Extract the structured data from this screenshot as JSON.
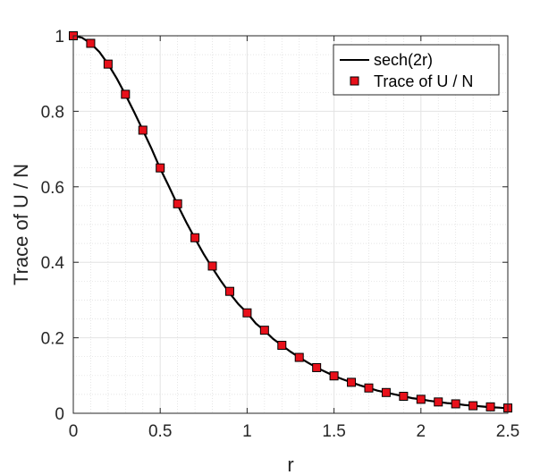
{
  "chart_data": {
    "type": "line",
    "xlabel": "r",
    "ylabel": "Trace of U / N",
    "xlim": [
      0,
      2.5
    ],
    "ylim": [
      0,
      1
    ],
    "x_ticks": [
      "0",
      "0.5",
      "1",
      "1.5",
      "2",
      "2.5"
    ],
    "y_ticks": [
      "0",
      "0.2",
      "0.4",
      "0.6",
      "0.8",
      "1"
    ],
    "grid": "on (major and minor)",
    "legend_placement": "top-right",
    "series": [
      {
        "name": "sech(2r)",
        "style": "line",
        "color": "#000000",
        "x": [
          0,
          0.05,
          0.1,
          0.15,
          0.2,
          0.25,
          0.3,
          0.35,
          0.4,
          0.45,
          0.5,
          0.55,
          0.6,
          0.65,
          0.7,
          0.75,
          0.8,
          0.85,
          0.9,
          0.95,
          1.0,
          1.05,
          1.1,
          1.15,
          1.2,
          1.25,
          1.3,
          1.35,
          1.4,
          1.45,
          1.5,
          1.55,
          1.6,
          1.65,
          1.7,
          1.75,
          1.8,
          1.85,
          1.9,
          1.95,
          2.0,
          2.05,
          2.1,
          2.15,
          2.2,
          2.25,
          2.3,
          2.35,
          2.4,
          2.45,
          2.5
        ],
        "y": [
          1.0,
          0.995,
          0.98,
          0.957,
          0.925,
          0.887,
          0.844,
          0.798,
          0.75,
          0.701,
          0.648,
          0.601,
          0.552,
          0.506,
          0.463,
          0.422,
          0.385,
          0.35,
          0.318,
          0.289,
          0.266,
          0.238,
          0.219,
          0.197,
          0.18,
          0.163,
          0.148,
          0.134,
          0.121,
          0.11,
          0.099,
          0.09,
          0.082,
          0.074,
          0.067,
          0.06,
          0.055,
          0.05,
          0.045,
          0.04,
          0.037,
          0.033,
          0.03,
          0.027,
          0.025,
          0.022,
          0.02,
          0.018,
          0.016,
          0.015,
          0.013
        ]
      },
      {
        "name": "Trace of U / N",
        "style": "markers",
        "marker": "square",
        "color": "#e8101a",
        "edge_color": "#000000",
        "x": [
          0,
          0.1,
          0.2,
          0.3,
          0.4,
          0.5,
          0.6,
          0.7,
          0.8,
          0.9,
          1.0,
          1.1,
          1.2,
          1.3,
          1.4,
          1.5,
          1.6,
          1.7,
          1.8,
          1.9,
          2.0,
          2.1,
          2.2,
          2.3,
          2.4,
          2.5
        ],
        "y": [
          1.0,
          0.98,
          0.925,
          0.845,
          0.75,
          0.65,
          0.555,
          0.465,
          0.39,
          0.323,
          0.266,
          0.22,
          0.18,
          0.148,
          0.121,
          0.099,
          0.082,
          0.067,
          0.055,
          0.045,
          0.037,
          0.03,
          0.025,
          0.02,
          0.017,
          0.014
        ]
      }
    ]
  }
}
